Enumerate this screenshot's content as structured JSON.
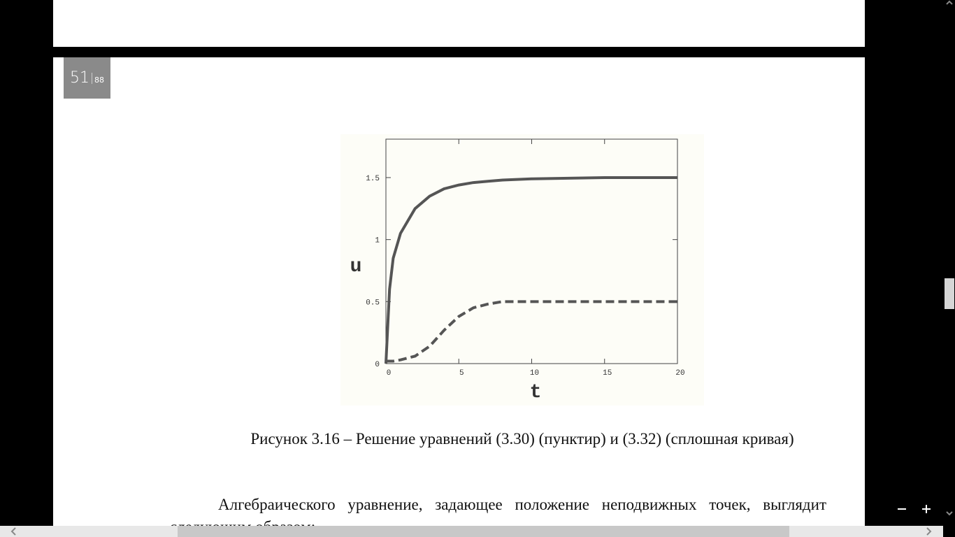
{
  "page_number": {
    "current": "51",
    "total": "88"
  },
  "chart_data": {
    "type": "line",
    "x_label": "t",
    "y_label": "u",
    "x": [
      0,
      0.25,
      0.5,
      1,
      2,
      3,
      4,
      5,
      6,
      7,
      8,
      10,
      15,
      20
    ],
    "series": [
      {
        "color": "#555555",
        "dash": false,
        "values": [
          0,
          0.6,
          0.85,
          1.05,
          1.25,
          1.35,
          1.41,
          1.44,
          1.46,
          1.47,
          1.48,
          1.49,
          1.5,
          1.5
        ]
      },
      {
        "color": "#555555",
        "dash": true,
        "values": [
          0.02,
          0.02,
          0.02,
          0.03,
          0.06,
          0.14,
          0.27,
          0.38,
          0.45,
          0.48,
          0.5,
          0.5,
          0.5,
          0.5
        ]
      }
    ],
    "xlim": [
      0,
      20
    ],
    "xticks": [
      0,
      5,
      10,
      15,
      20
    ],
    "ylim": [
      0,
      1.81
    ],
    "yticks": [
      0,
      0.5,
      1,
      1.5
    ]
  },
  "caption": "Рисунок  3.16 – Решение уравнений (3.30) (пунктир) и (3.32) (сплошная кривая)",
  "paragraph": "Алгебраического уравнение, задающее положение неподвижных точек, выглядит следующим образом:"
}
